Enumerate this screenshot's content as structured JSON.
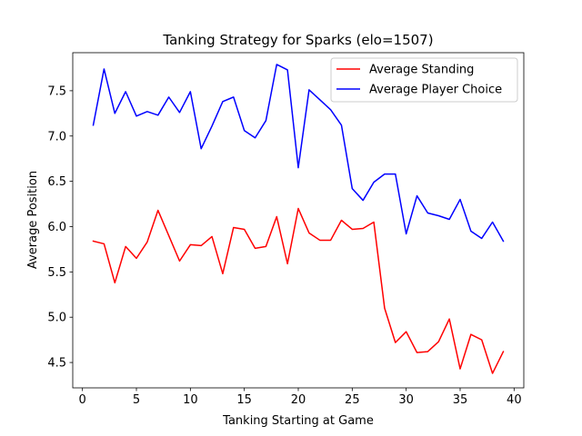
{
  "chart_data": {
    "type": "line",
    "title": "Tanking Strategy for Sparks (elo=1507)",
    "xlabel": "Tanking Starting at Game",
    "ylabel": "Average Position",
    "xlim": [
      -0.9,
      40.9
    ],
    "ylim": [
      4.22,
      7.92
    ],
    "xticks": [
      0,
      5,
      10,
      15,
      20,
      25,
      30,
      35,
      40
    ],
    "yticks": [
      4.5,
      5.0,
      5.5,
      6.0,
      6.5,
      7.0,
      7.5
    ],
    "ytick_labels": [
      "4.5",
      "5.0",
      "5.5",
      "6.0",
      "6.5",
      "7.0",
      "7.5"
    ],
    "grid": false,
    "legend_position": "top-right",
    "x": [
      1,
      2,
      3,
      4,
      5,
      6,
      7,
      8,
      9,
      10,
      11,
      12,
      13,
      14,
      15,
      16,
      17,
      18,
      19,
      20,
      21,
      22,
      23,
      24,
      25,
      26,
      27,
      28,
      29,
      30,
      31,
      32,
      33,
      34,
      35,
      36,
      37,
      38,
      39
    ],
    "series": [
      {
        "name": "Average Standing",
        "color": "#ff0000",
        "values": [
          5.84,
          5.81,
          5.38,
          5.78,
          5.65,
          5.83,
          6.18,
          5.9,
          5.62,
          5.8,
          5.79,
          5.89,
          5.48,
          5.99,
          5.97,
          5.76,
          5.78,
          6.11,
          5.59,
          6.2,
          5.93,
          5.85,
          5.85,
          6.07,
          5.97,
          5.98,
          6.05,
          5.1,
          4.72,
          4.84,
          4.61,
          4.62,
          4.73,
          4.98,
          4.43,
          4.81,
          4.75,
          4.38,
          4.62
        ]
      },
      {
        "name": "Average Player Choice",
        "color": "#0000ff",
        "values": [
          7.12,
          7.74,
          7.25,
          7.49,
          7.22,
          7.27,
          7.23,
          7.43,
          7.26,
          7.49,
          6.86,
          7.11,
          7.38,
          7.43,
          7.06,
          6.98,
          7.17,
          7.79,
          7.73,
          6.65,
          7.51,
          7.4,
          7.29,
          7.12,
          6.42,
          6.29,
          6.49,
          6.58,
          6.58,
          5.92,
          6.34,
          6.15,
          6.12,
          6.08,
          6.3,
          5.95,
          5.87,
          6.05,
          5.84
        ]
      }
    ]
  }
}
